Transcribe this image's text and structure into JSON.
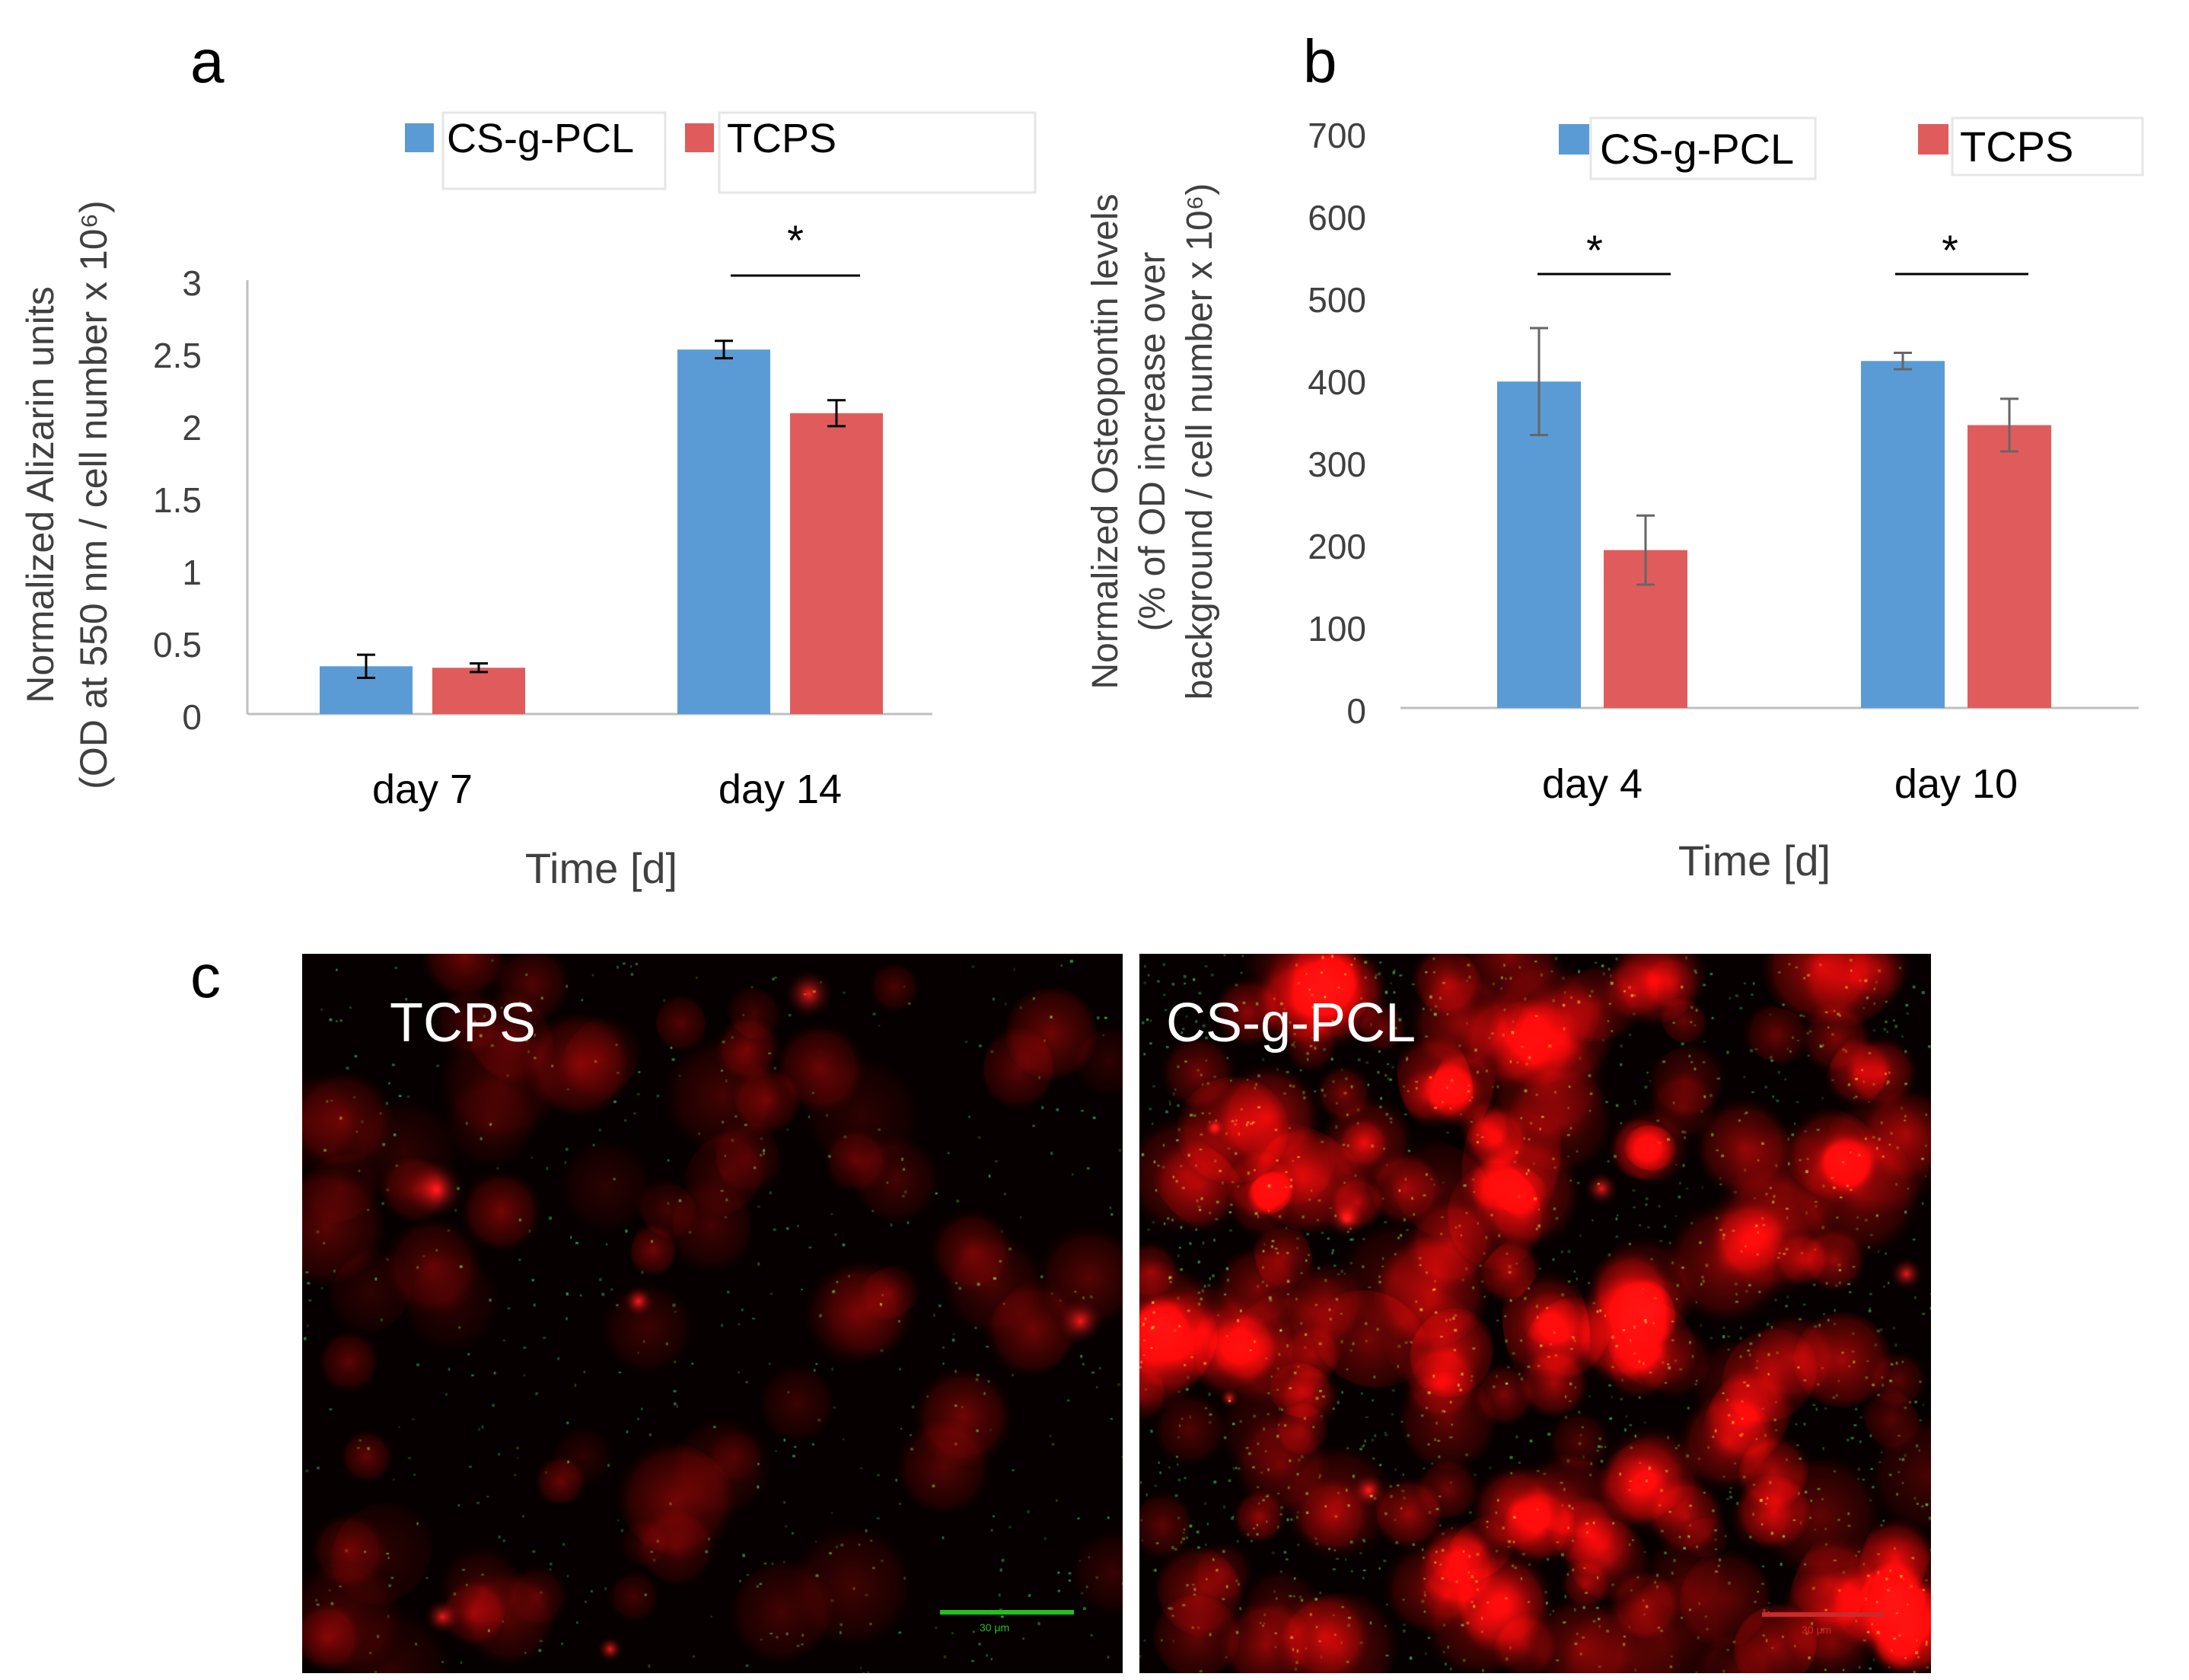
{
  "panel_labels": {
    "a": "a",
    "b": "b",
    "c": "c"
  },
  "colors": {
    "cs_g_pcl": "#5B9BD5",
    "tcps": "#E05C5C",
    "axis": "#bfbfbf",
    "text": "#404040"
  },
  "chart_data": [
    {
      "type": "bar",
      "categories": [
        "day 7",
        "day 14"
      ],
      "series": [
        {
          "name": "CS-g-PCL",
          "values": [
            0.33,
            2.52
          ],
          "errors": [
            0.08,
            0.06
          ]
        },
        {
          "name": "TCPS",
          "values": [
            0.32,
            2.08
          ],
          "errors": [
            0.03,
            0.09
          ]
        }
      ],
      "xlabel": "Time [d]",
      "ylabel_line1": "Normalized Alizarin units",
      "ylabel_line2": "(OD at 550 nm / cell number x 10⁶)",
      "ylim": [
        0,
        3
      ],
      "yticks": [
        "0",
        "0.5",
        "1",
        "1.5",
        "2",
        "2.5",
        "3"
      ],
      "legend": "top",
      "significance": [
        {
          "category": "day 14",
          "label": "*"
        }
      ]
    },
    {
      "type": "bar",
      "categories": [
        "day 4",
        "day 10"
      ],
      "series": [
        {
          "name": "CS-g-PCL",
          "values": [
            397,
            422
          ],
          "errors": [
            65,
            10
          ]
        },
        {
          "name": "TCPS",
          "values": [
            192,
            344
          ],
          "errors": [
            42,
            32
          ]
        }
      ],
      "xlabel": "Time [d]",
      "ylabel_line1": "Normalized Osteopontin levels",
      "ylabel_line2": "(% of OD increase over",
      "ylabel_line3": "background / cell number x 10⁶)",
      "ylim": [
        0,
        700
      ],
      "yticks": [
        "0",
        "100",
        "200",
        "300",
        "400",
        "500",
        "600",
        "700"
      ],
      "legend": "top",
      "significance": [
        {
          "category": "day 4",
          "label": "*"
        },
        {
          "category": "day 10",
          "label": "*"
        }
      ]
    }
  ],
  "micrographs": [
    {
      "label": "TCPS",
      "scale_text": "30 μm",
      "scale_color": "#22c022"
    },
    {
      "label": "CS-g-PCL",
      "scale_text": "30 μm",
      "scale_color": "#cc2a2a"
    }
  ]
}
